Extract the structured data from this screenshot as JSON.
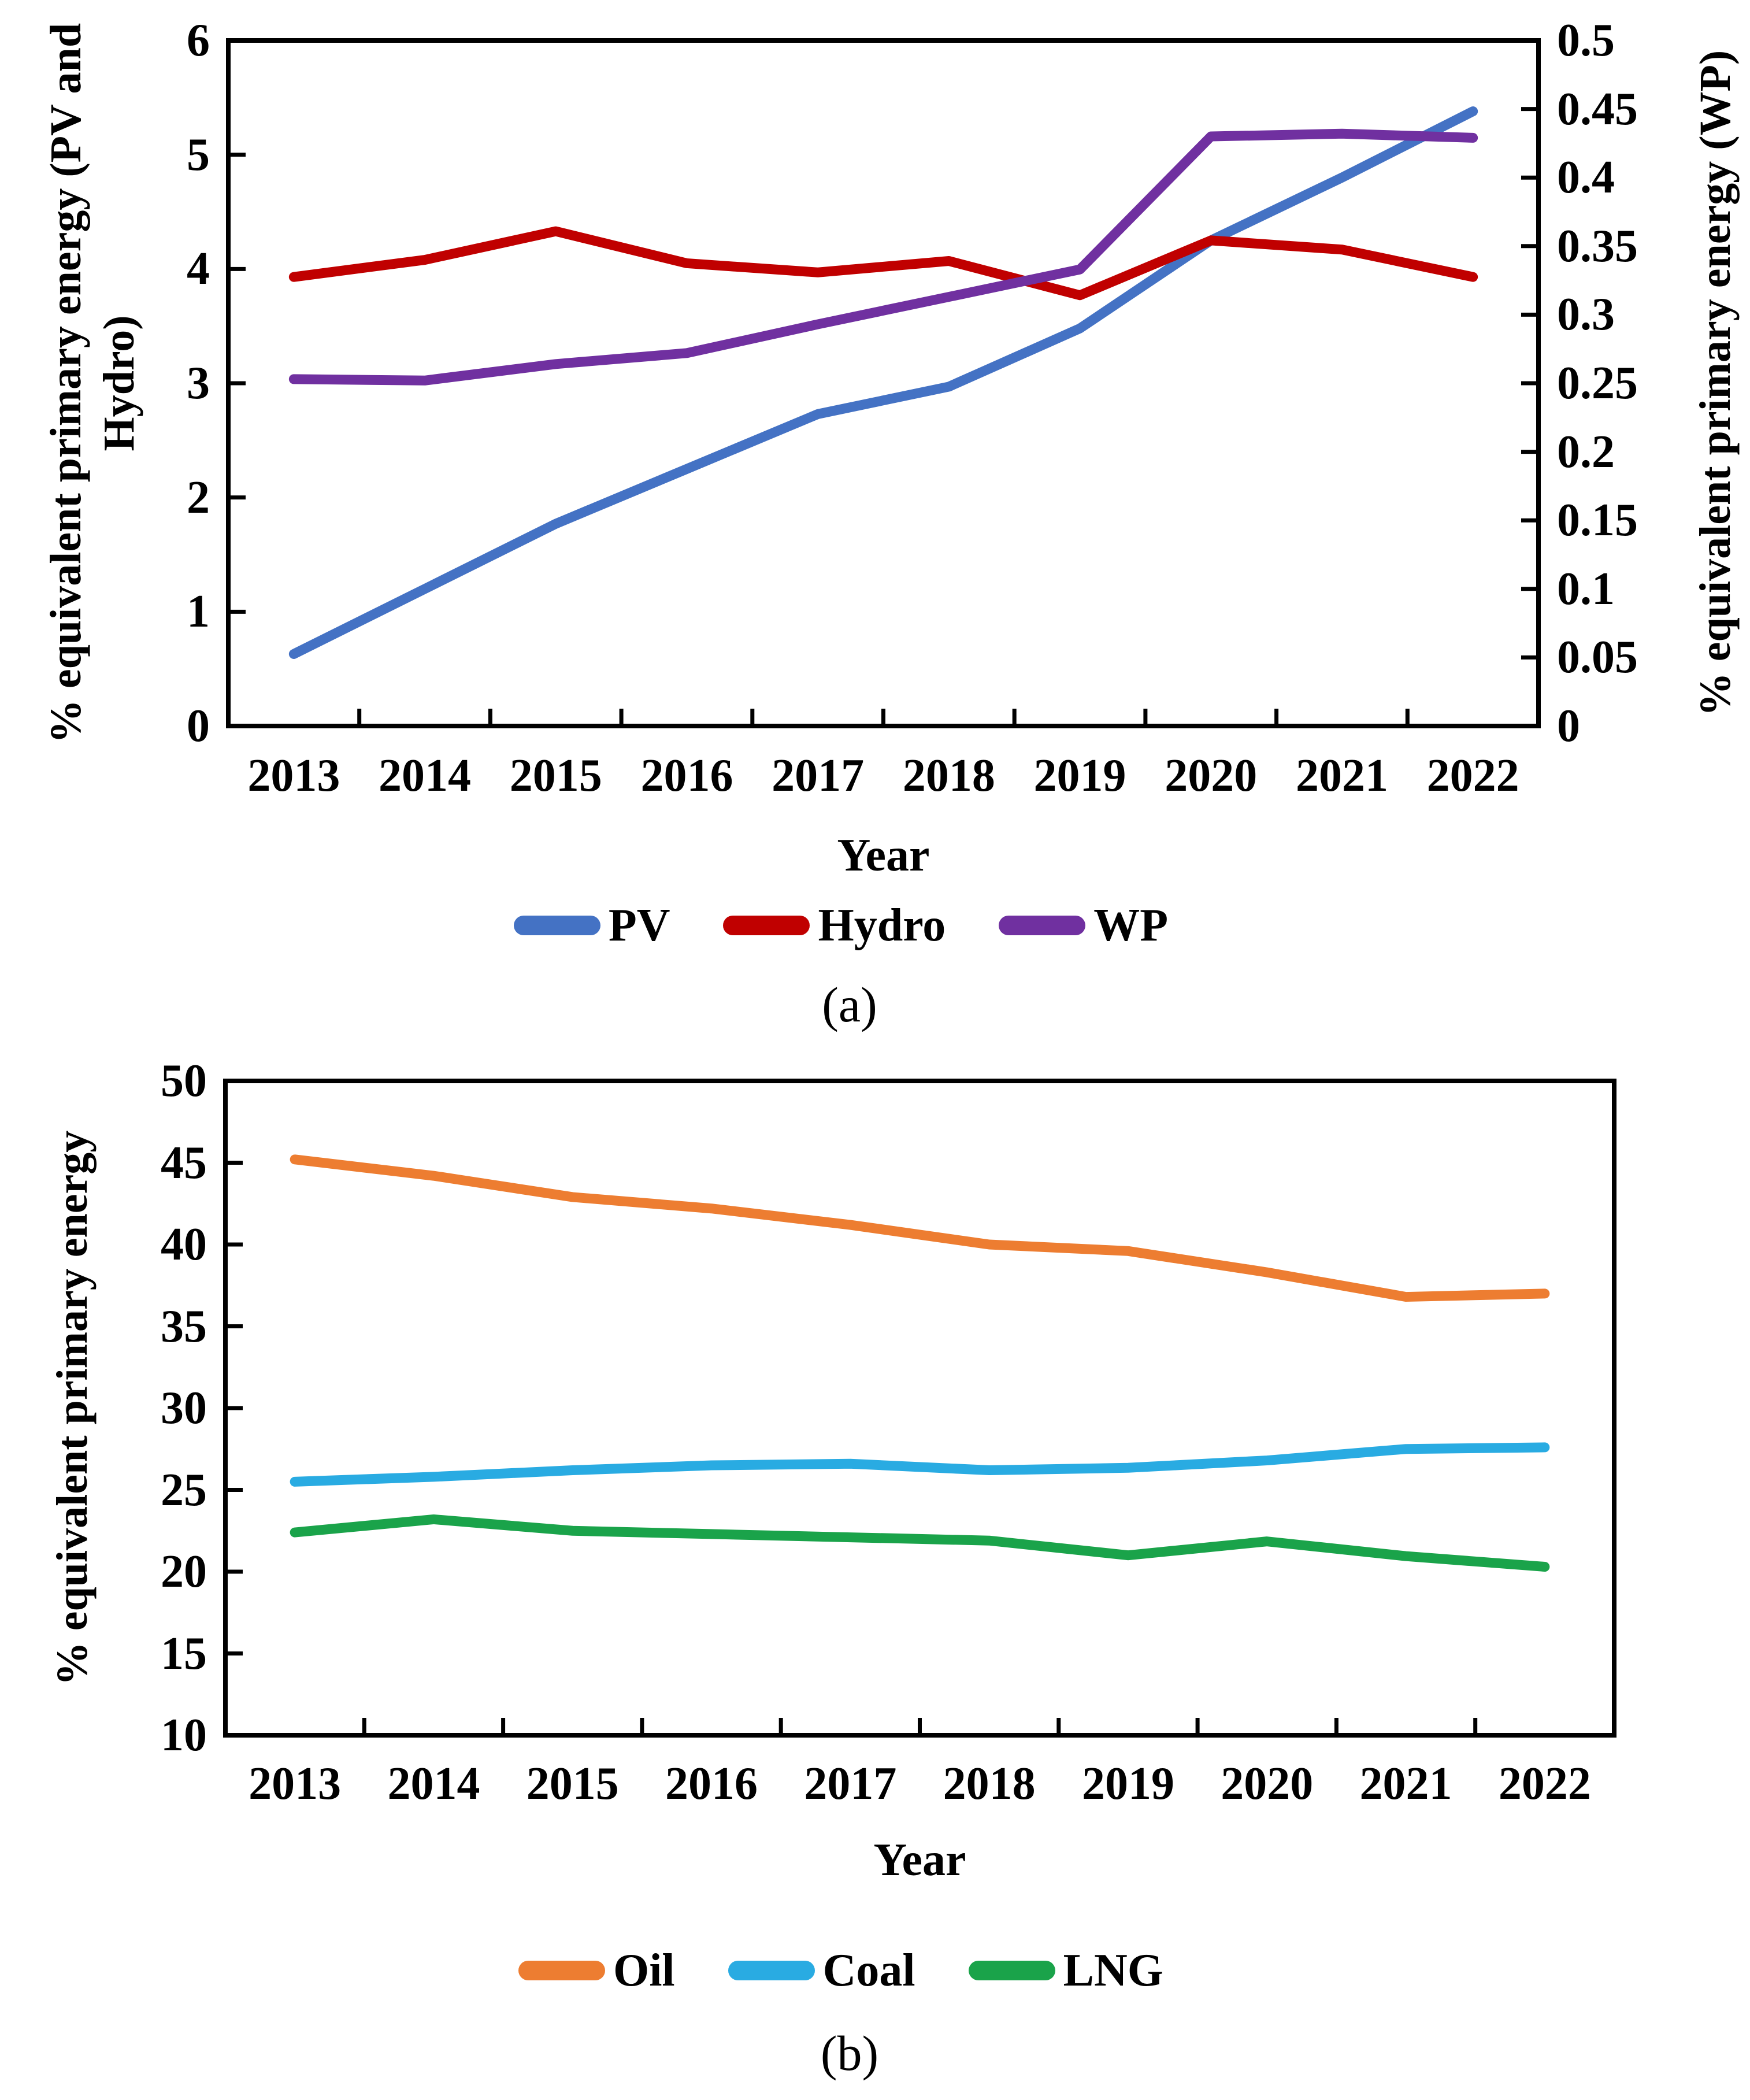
{
  "figure": {
    "background": "#ffffff",
    "axis_color": "#000000",
    "text_color": "#000000"
  },
  "chart_data": [
    {
      "id": "a",
      "type": "line",
      "caption": "(a)",
      "xlabel": "Year",
      "categories": [
        "2013",
        "2014",
        "2015",
        "2016",
        "2017",
        "2018",
        "2019",
        "2020",
        "2021",
        "2022"
      ],
      "axes": {
        "left": {
          "label": "% equivalent primary energy (PV and Hydro)",
          "label_lines": [
            "% equivalent primary energy (PV and",
            "Hydro)"
          ],
          "lim": [
            0,
            6
          ],
          "ticks": [
            "0",
            "1",
            "2",
            "3",
            "4",
            "5",
            "6"
          ]
        },
        "right": {
          "label": "% equivalent primary energy (WP)",
          "lim": [
            0,
            0.5
          ],
          "ticks": [
            "0",
            "0.05",
            "0.1",
            "0.15",
            "0.2",
            "0.25",
            "0.3",
            "0.35",
            "0.4",
            "0.45",
            "0.5"
          ]
        }
      },
      "grid": false,
      "legend_position": "bottom",
      "series": [
        {
          "name": "PV",
          "color": "#4472C4",
          "axis": "left",
          "values": [
            0.63,
            1.2,
            1.77,
            2.25,
            2.73,
            2.97,
            3.48,
            4.25,
            4.8,
            5.38
          ]
        },
        {
          "name": "Hydro",
          "color": "#C00000",
          "axis": "left",
          "values": [
            3.93,
            4.08,
            4.33,
            4.05,
            3.97,
            4.07,
            3.77,
            4.25,
            4.17,
            3.93
          ]
        },
        {
          "name": "WP",
          "color": "#7030A0",
          "axis": "right",
          "values": [
            0.253,
            0.252,
            0.264,
            0.272,
            0.293,
            0.313,
            0.333,
            0.43,
            0.432,
            0.429
          ]
        }
      ]
    },
    {
      "id": "b",
      "type": "line",
      "caption": "(b)",
      "xlabel": "Year",
      "categories": [
        "2013",
        "2014",
        "2015",
        "2016",
        "2017",
        "2018",
        "2019",
        "2020",
        "2021",
        "2022"
      ],
      "axes": {
        "left": {
          "label": "% equivalent primary energy",
          "label_lines": [
            "% equivalent primary energy"
          ],
          "lim": [
            10,
            50
          ],
          "ticks": [
            "10",
            "15",
            "20",
            "25",
            "30",
            "35",
            "40",
            "45",
            "50"
          ]
        }
      },
      "grid": false,
      "legend_position": "bottom",
      "series": [
        {
          "name": "Oil",
          "color": "#ED7D31",
          "axis": "left",
          "values": [
            45.2,
            44.2,
            42.9,
            42.2,
            41.2,
            40.0,
            39.6,
            38.3,
            36.8,
            37.0
          ]
        },
        {
          "name": "Coal",
          "color": "#29ABE2",
          "axis": "left",
          "values": [
            25.5,
            25.8,
            26.2,
            26.5,
            26.6,
            26.2,
            26.35,
            26.8,
            27.5,
            27.6
          ]
        },
        {
          "name": "LNG",
          "color": "#1AA34A",
          "axis": "left",
          "values": [
            22.4,
            23.2,
            22.5,
            22.3,
            22.1,
            21.9,
            21.0,
            21.85,
            20.95,
            20.3
          ]
        }
      ]
    }
  ]
}
